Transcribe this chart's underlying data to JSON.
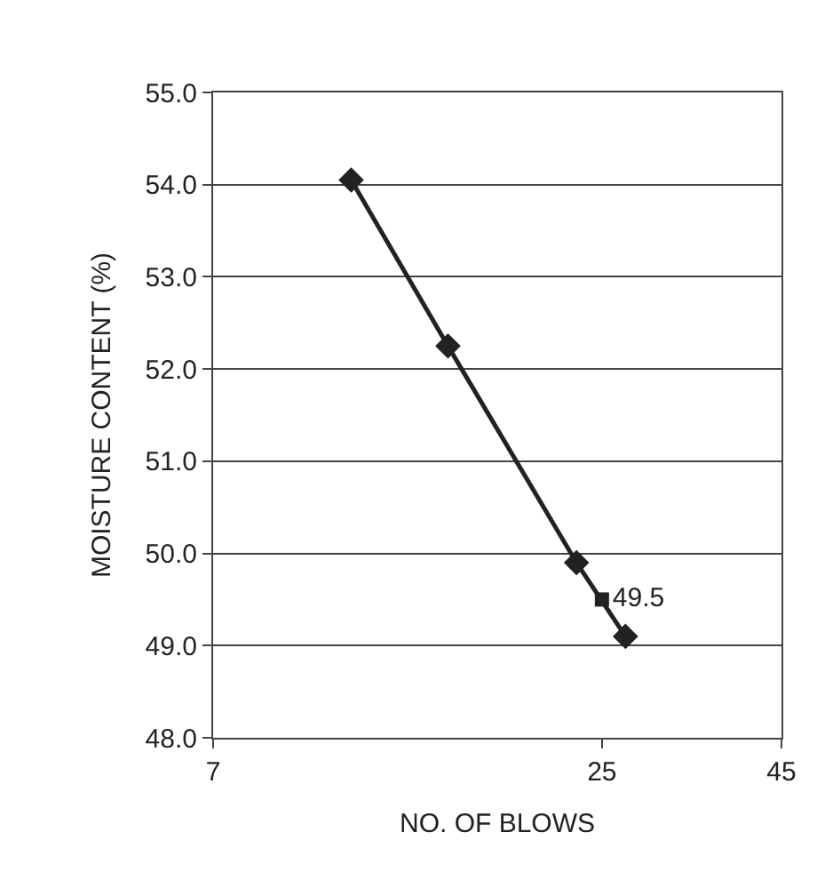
{
  "chart_data": {
    "type": "line",
    "xlabel": "NO. OF BLOWS",
    "ylabel": "MOISTURE CONTENT (%)",
    "log": "x",
    "xlim": [
      7,
      45
    ],
    "xticks": [
      7,
      25,
      45
    ],
    "ylim": [
      48,
      55
    ],
    "yticks": [
      {
        "value": 48,
        "label": "48.0"
      },
      {
        "value": 49,
        "label": "49.0"
      },
      {
        "value": 50,
        "label": "50.0"
      },
      {
        "value": 51,
        "label": "51.0"
      },
      {
        "value": 52,
        "label": "52.0"
      },
      {
        "value": 53,
        "label": "53.0"
      },
      {
        "value": 54,
        "label": "54.0"
      },
      {
        "value": 55,
        "label": "55.0"
      }
    ],
    "grid": "y",
    "legend": false,
    "series": [
      {
        "color": "#222222",
        "marker": "diamond",
        "x": [
          11.0,
          15.1,
          23.0,
          27.0
        ],
        "values": [
          54.05,
          52.25,
          49.9,
          49.1
        ]
      },
      {
        "type": "scatter",
        "color": "#222222",
        "marker": "square",
        "x": [
          25
        ],
        "values": [
          49.5
        ],
        "value_labels": [
          "49.5"
        ]
      }
    ]
  }
}
